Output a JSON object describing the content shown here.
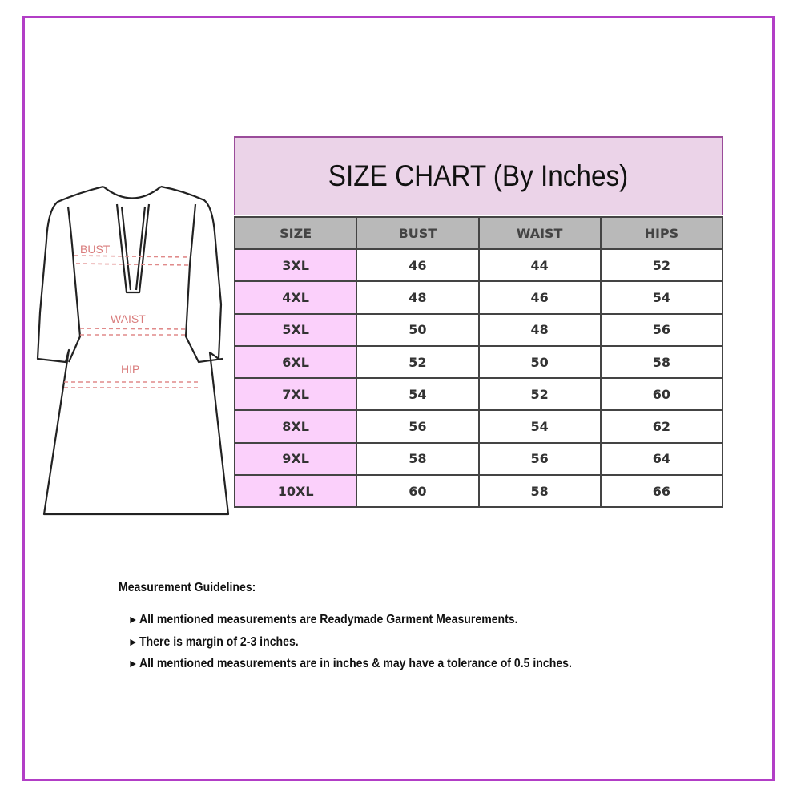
{
  "colors": {
    "frame": "#b23ec6",
    "title_band": "#ebd3e8",
    "size_cell": "#fbd0fb",
    "header": "#b9b9b9",
    "measure_marks": "#e08a8a"
  },
  "diagram": {
    "labels": [
      "BUST",
      "WAIST",
      "HIP"
    ]
  },
  "title": "SIZE CHART (By Inches)",
  "table": {
    "headers": [
      "SIZE",
      "BUST",
      "WAIST",
      "HIPS"
    ],
    "rows": [
      [
        "3XL",
        "46",
        "44",
        "52"
      ],
      [
        "4XL",
        "48",
        "46",
        "54"
      ],
      [
        "5XL",
        "50",
        "48",
        "56"
      ],
      [
        "6XL",
        "52",
        "50",
        "58"
      ],
      [
        "7XL",
        "54",
        "52",
        "60"
      ],
      [
        "8XL",
        "56",
        "54",
        "62"
      ],
      [
        "9XL",
        "58",
        "56",
        "64"
      ],
      [
        "10XL",
        "60",
        "58",
        "66"
      ]
    ]
  },
  "guidelines": {
    "heading": "Measurement Guidelines:",
    "bullet_icon": "right-pointer-arrow",
    "items": [
      "All mentioned measurements are Readymade Garment Measurements.",
      "There is margin of 2-3 inches.",
      "All mentioned measurements are in inches & may have a tolerance of 0.5 inches."
    ]
  }
}
